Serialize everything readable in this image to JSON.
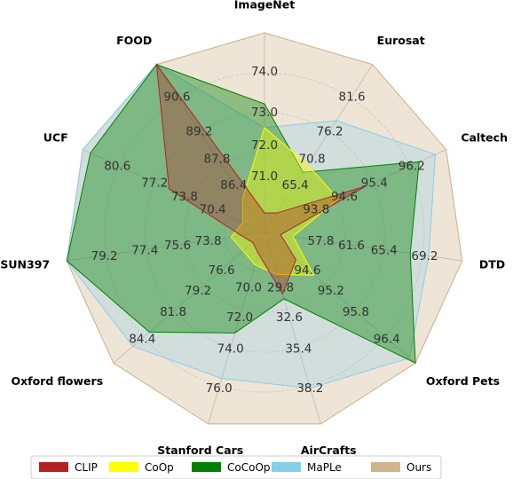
{
  "chart_data": {
    "type": "radar",
    "grid": true,
    "legend_position": "bottom",
    "axes": [
      {
        "name": "ImageNet",
        "ticks": [
          "71.0",
          "72.0",
          "73.0",
          "74.0"
        ],
        "range": [
          70.0,
          74.0
        ]
      },
      {
        "name": "Eurosat",
        "ticks": [
          "65.4",
          "70.8",
          "76.2",
          "81.6"
        ],
        "range": [
          60.0,
          81.6
        ]
      },
      {
        "name": "Caltech",
        "ticks": [
          "93.8",
          "94.6",
          "95.4",
          "96.2"
        ],
        "range": [
          93.0,
          96.2
        ]
      },
      {
        "name": "DTD",
        "ticks": [
          "57.8",
          "61.6",
          "65.4",
          "69.2"
        ],
        "range": [
          54.0,
          69.2
        ]
      },
      {
        "name": "Oxford Pets",
        "ticks": [
          "94.6",
          "95.2",
          "95.8",
          "96.4"
        ],
        "range": [
          94.0,
          96.4
        ]
      },
      {
        "name": "AirCrafts",
        "ticks": [
          "29.8",
          "32.6",
          "35.4",
          "38.2"
        ],
        "range": [
          27.0,
          38.2
        ]
      },
      {
        "name": "Stanford Cars",
        "ticks": [
          "70.0",
          "72.0",
          "74.0",
          "76.0"
        ],
        "range": [
          68.0,
          76.0
        ]
      },
      {
        "name": "Oxford flowers",
        "ticks": [
          "76.6",
          "79.2",
          "81.8",
          "84.4"
        ],
        "range": [
          74.0,
          84.4
        ]
      },
      {
        "name": "SUN397",
        "ticks": [
          "73.8",
          "75.6",
          "77.4",
          "79.2"
        ],
        "range": [
          72.0,
          79.2
        ]
      },
      {
        "name": "UCF",
        "ticks": [
          "70.4",
          "73.8",
          "77.2",
          "80.6"
        ],
        "range": [
          67.0,
          80.6
        ]
      },
      {
        "name": "FOOD",
        "ticks": [
          "86.4",
          "87.8",
          "89.2",
          "90.6"
        ],
        "range": [
          85.0,
          90.6
        ]
      }
    ],
    "series": [
      {
        "name": "CLIP",
        "color": "#b22222",
        "values": [
          70.2,
          61.5,
          94.7,
          54.5,
          94.4,
          30.2,
          68.5,
          74.3,
          72.5,
          73.8,
          90.6
        ]
      },
      {
        "name": "CoOp",
        "color": "#ffff00",
        "values": [
          72.0,
          68.0,
          94.2,
          55.5,
          94.7,
          29.0,
          69.0,
          75.0,
          72.9,
          68.0,
          85.9
        ]
      },
      {
        "name": "CoCoOp",
        "color": "#008000",
        "values": [
          72.5,
          67.0,
          95.7,
          65.0,
          96.4,
          30.5,
          72.0,
          81.8,
          79.5,
          80.0,
          90.6
        ]
      },
      {
        "name": "MaPLe",
        "color": "#87ceeb",
        "values": [
          72.0,
          74.0,
          96.0,
          66.5,
          96.3,
          36.0,
          74.0,
          83.0,
          79.7,
          81.0,
          90.6
        ]
      },
      {
        "name": "Ours",
        "color": "#d2b48c",
        "values": [
          74.0,
          81.6,
          96.2,
          69.2,
          96.4,
          38.2,
          76.0,
          84.4,
          79.2,
          80.6,
          90.6
        ]
      }
    ]
  }
}
